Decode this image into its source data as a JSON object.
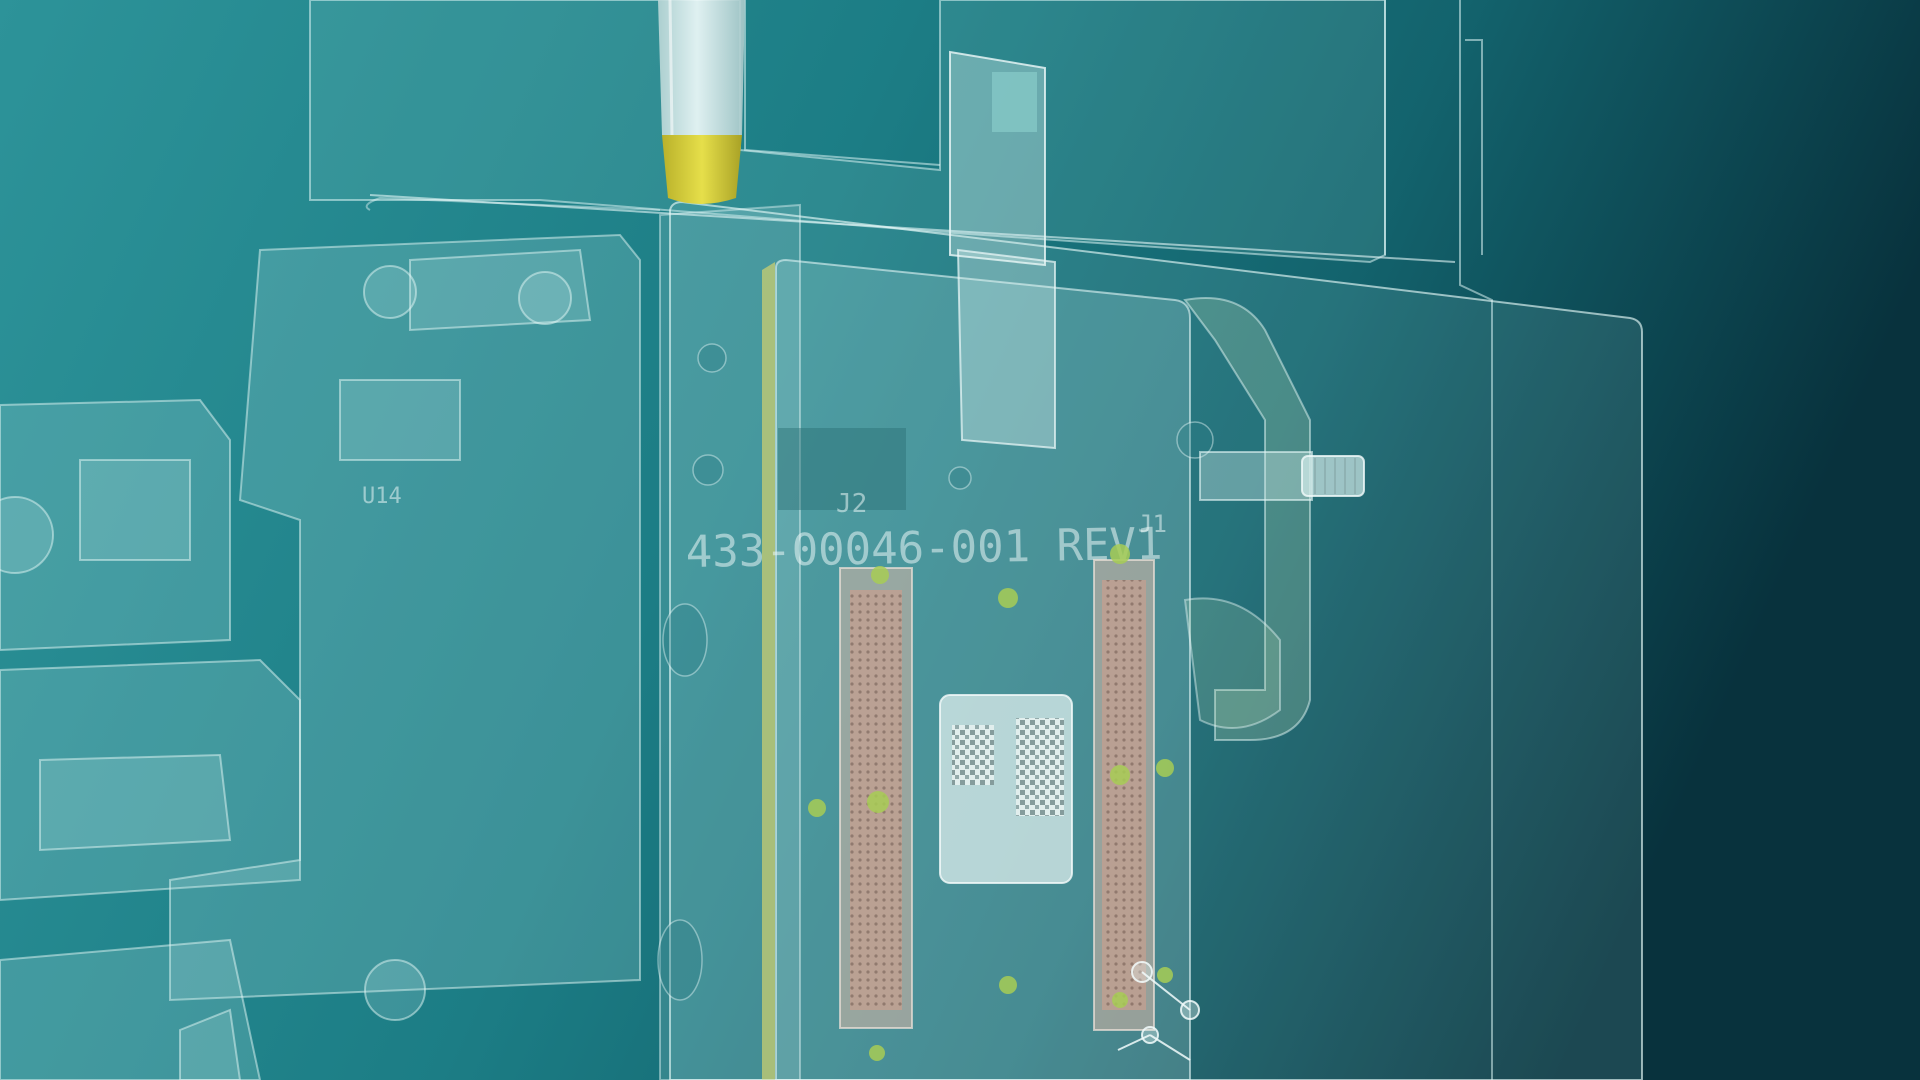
{
  "scene": {
    "board_label": "433-00046-001 REV1",
    "connector_left_label": "J2",
    "connector_right_label": "J1",
    "small_marking": "U14"
  },
  "palette": {
    "bg_left": "#2b8f95",
    "bg_mid": "#17727a",
    "bg_right": "#0a3a45",
    "glass": "#bfe8e6",
    "edge": "#e4f7f6",
    "pcb_edge": "#c9c85a",
    "connector": "#c9a494",
    "pad": "#a7cc55",
    "probe_tip": "#d8cf3c",
    "probe_body": "#dfeeee"
  }
}
